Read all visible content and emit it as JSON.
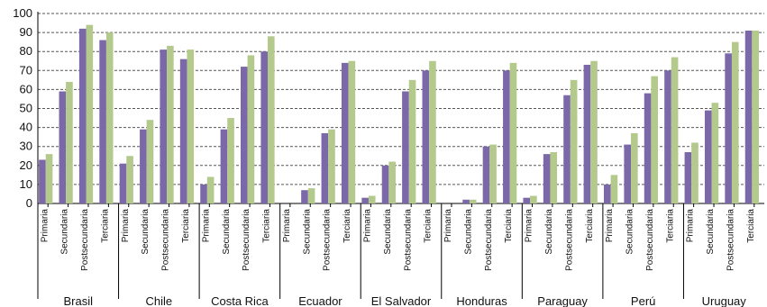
{
  "chart_data": {
    "type": "bar",
    "title": "",
    "xlabel": "",
    "ylabel": "",
    "ylim": [
      0,
      100
    ],
    "yticks": [
      "0",
      "10",
      "20",
      "30",
      "40",
      "50",
      "60",
      "70",
      "80",
      "90",
      "100"
    ],
    "grid": true,
    "legend": "none",
    "groups": [
      "Brasil",
      "Chile",
      "Costa Rica",
      "Ecuador",
      "El Salvador",
      "Honduras",
      "Paraguay",
      "Perú",
      "Uruguay"
    ],
    "levels": [
      "Primaria",
      "Secundaria",
      "Postsecundaria",
      "Terciaria"
    ],
    "series": [
      {
        "color": "#7b68a8",
        "values": [
          [
            23,
            59,
            92,
            86
          ],
          [
            21,
            39,
            81,
            76
          ],
          [
            10,
            39,
            72,
            80
          ],
          [
            0,
            7,
            37,
            74
          ],
          [
            3,
            20,
            59,
            70
          ],
          [
            0,
            2,
            30,
            70
          ],
          [
            3,
            26,
            57,
            73
          ],
          [
            10,
            31,
            58,
            70
          ],
          [
            27,
            49,
            79,
            91
          ]
        ]
      },
      {
        "color": "#b4c98c",
        "values": [
          [
            26,
            64,
            94,
            90
          ],
          [
            25,
            44,
            83,
            81
          ],
          [
            14,
            45,
            78,
            88
          ],
          [
            0,
            8,
            39,
            75
          ],
          [
            4,
            22,
            65,
            75
          ],
          [
            0,
            2,
            31,
            74
          ],
          [
            4,
            27,
            65,
            75
          ],
          [
            15,
            37,
            67,
            77
          ],
          [
            32,
            53,
            85,
            91
          ]
        ]
      }
    ]
  }
}
